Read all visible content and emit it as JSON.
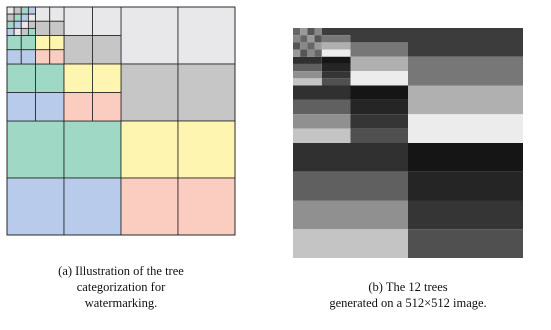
{
  "figures": [
    {
      "caption": [
        "(a) Illustration of the tree",
        "categorization for",
        "watermarking."
      ]
    },
    {
      "caption": [
        "(b) The 12 trees",
        "generated on a 512×512 image."
      ]
    }
  ]
}
